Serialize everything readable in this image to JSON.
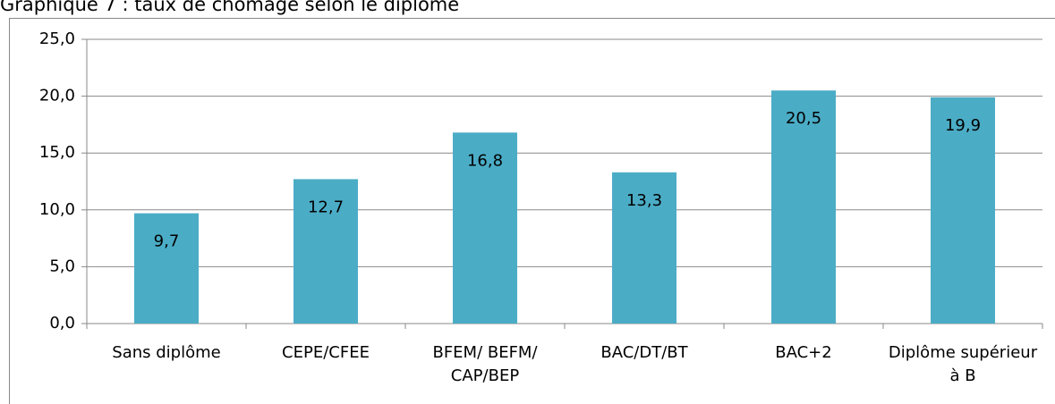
{
  "chart_data": {
    "type": "bar",
    "title": "Graphique 7 : taux de chômage selon le diplôme",
    "categories": [
      "Sans diplôme",
      "CEPE/CFEE",
      "BFEM/ BEFM/ CAP/BEP",
      "BAC/DT/BT",
      "BAC+2",
      "Diplôme supérieur à B"
    ],
    "values": [
      9.7,
      12.7,
      16.8,
      13.3,
      20.5,
      19.9
    ],
    "value_labels": [
      "9,7",
      "12,7",
      "16,8",
      "13,3",
      "20,5",
      "19,9"
    ],
    "color": "#4bacc6",
    "ylim": [
      0,
      25
    ],
    "yticks": [
      {
        "value": 0,
        "label": "0,0"
      },
      {
        "value": 5,
        "label": "5,0"
      },
      {
        "value": 10,
        "label": "10,0"
      },
      {
        "value": 15,
        "label": "15,0"
      },
      {
        "value": 20,
        "label": "20,0"
      },
      {
        "value": 25,
        "label": "25,0"
      }
    ],
    "grid": true
  }
}
